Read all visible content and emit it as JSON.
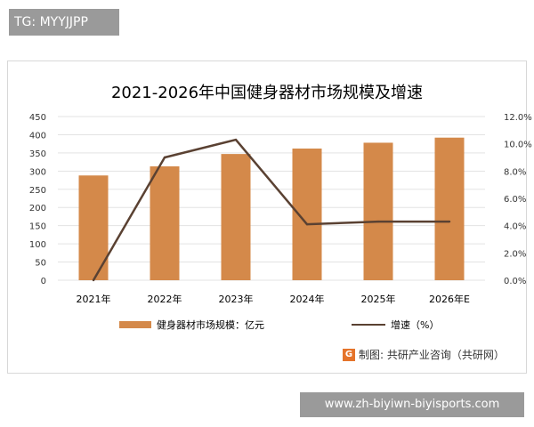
{
  "tag_label": "TG: MYYJJPP",
  "source_text": "制图: 共研产业咨询（共研网）",
  "logo_glyph": "G",
  "url_text": "www.zh-biyiwn-biyisports.com",
  "colors": {
    "bar": "#d4894a",
    "line": "#5a4132",
    "grid": "#e3e3e3",
    "logo": "#e5742b"
  },
  "chart_data": {
    "type": "bar",
    "title": "2021-2026年中国健身器材市场规模及增速",
    "categories": [
      "2021年",
      "2022年",
      "2023年",
      "2024年",
      "2025年",
      "2026年E"
    ],
    "series": [
      {
        "name": "健身器材市场规模：亿元",
        "type": "bar",
        "axis": "left",
        "values": [
          288,
          313,
          347,
          362,
          378,
          392
        ]
      },
      {
        "name": "增速（%）",
        "type": "line",
        "axis": "right",
        "values": [
          0.0,
          9.0,
          10.3,
          4.1,
          4.3,
          4.3
        ]
      }
    ],
    "left_axis": {
      "ylim": [
        0,
        450
      ],
      "ticks": [
        "0",
        "50",
        "100",
        "150",
        "200",
        "250",
        "300",
        "350",
        "400",
        "450"
      ]
    },
    "right_axis": {
      "ylim": [
        0,
        12
      ],
      "ticks": [
        "0.0%",
        "2.0%",
        "4.0%",
        "6.0%",
        "8.0%",
        "10.0%",
        "12.0%"
      ]
    },
    "grid": true,
    "legend_position": "bottom"
  }
}
